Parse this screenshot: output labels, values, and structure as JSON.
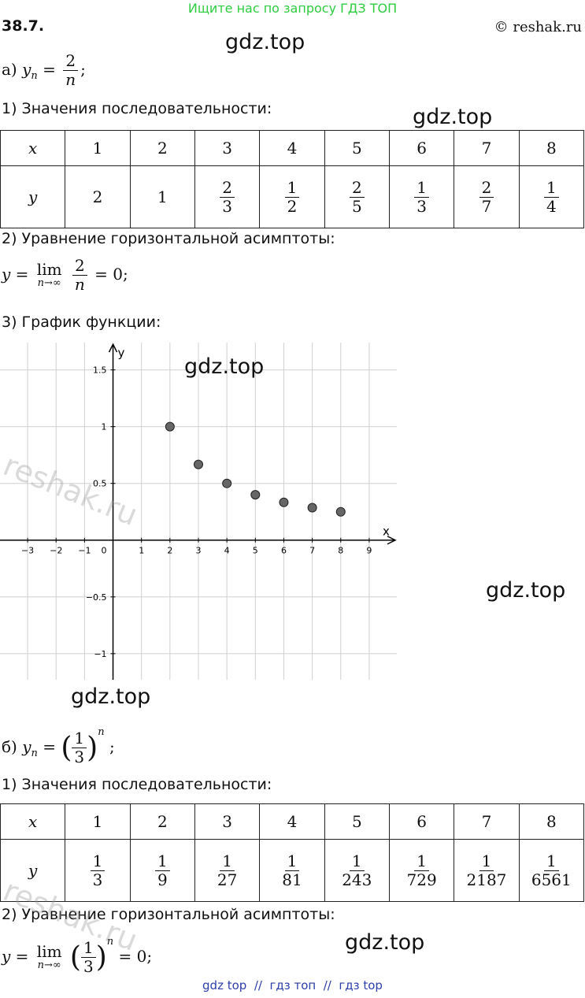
{
  "header": {
    "banner": "Ищите нас по запросу ГДЗ ТОП",
    "problem": "38.7.",
    "copyright": "© reshak.ru"
  },
  "watermarks": [
    "gdz.top",
    "gdz.top",
    "gdz.top",
    "gdz.top",
    "gdz.top",
    "gdz.top"
  ],
  "side_watermarks": [
    "reshak.ru",
    "reshak.ru"
  ],
  "part_a": {
    "label": "а)",
    "formula": {
      "var": "y",
      "index": "n",
      "eq": "=",
      "num": "2",
      "den": "n",
      "tail": ";"
    },
    "step1": "1) Значения последовательности:",
    "table": {
      "header": [
        "x",
        "1",
        "2",
        "3",
        "4",
        "5",
        "6",
        "7",
        "8"
      ],
      "row_label": "y",
      "values": [
        {
          "num": "2"
        },
        {
          "num": "1"
        },
        {
          "num": "2",
          "den": "3"
        },
        {
          "num": "1",
          "den": "2"
        },
        {
          "num": "2",
          "den": "5"
        },
        {
          "num": "1",
          "den": "3"
        },
        {
          "num": "2",
          "den": "7"
        },
        {
          "num": "1",
          "den": "4"
        }
      ]
    },
    "step2": "2) Уравнение горизонтальной асимптоты:",
    "asymptote": {
      "var": "y",
      "eq": "=",
      "lim": "lim",
      "under": "n→∞",
      "num": "2",
      "den": "n",
      "result": "= 0;"
    },
    "step3": "3) График функции:",
    "graph": {
      "type": "scatter",
      "x_label": "x",
      "y_label": "y",
      "origin": "0",
      "xlim": [
        -3.97,
        9.97
      ],
      "ylim": [
        -1.23,
        1.74
      ],
      "xticks": [
        {
          "value": -3,
          "label": "−3"
        },
        {
          "value": -2,
          "label": "−2"
        },
        {
          "value": -1,
          "label": "−1"
        },
        1,
        2,
        3,
        4,
        5,
        6,
        7,
        8,
        9
      ],
      "yticks": [
        {
          "value": -1,
          "label": "−1"
        },
        {
          "value": -0.5,
          "label": "−0.5"
        },
        0.5,
        1,
        1.5
      ],
      "grid": true,
      "color": "#666666",
      "x": [
        2,
        3,
        4,
        5,
        6,
        7,
        8
      ],
      "values": [
        1,
        0.667,
        0.5,
        0.4,
        0.333,
        0.286,
        0.25
      ]
    }
  },
  "part_b": {
    "label": "б)",
    "formula": {
      "var": "y",
      "index": "n",
      "eq": "=",
      "open": "(",
      "num": "1",
      "den": "3",
      "close": ")",
      "power": "n",
      "tail": ";"
    },
    "step1": "1) Значения последовательности:",
    "table": {
      "header": [
        "x",
        "1",
        "2",
        "3",
        "4",
        "5",
        "6",
        "7",
        "8"
      ],
      "row_label": "y",
      "values": [
        {
          "num": "1",
          "den": "3"
        },
        {
          "num": "1",
          "den": "9"
        },
        {
          "num": "1",
          "den": "27"
        },
        {
          "num": "1",
          "den": "81"
        },
        {
          "num": "1",
          "den": "243"
        },
        {
          "num": "1",
          "den": "729"
        },
        {
          "num": "1",
          "den": "2187"
        },
        {
          "num": "1",
          "den": "6561"
        }
      ]
    },
    "step2": "2) Уравнение горизонтальной асимптоты:",
    "asymptote": {
      "var": "y",
      "eq": "=",
      "lim": "lim",
      "under": "n→∞",
      "open": "(",
      "num": "1",
      "den": "3",
      "close": ")",
      "power": "n",
      "result": "= 0;"
    }
  },
  "footer": "gdz top  //  гдз топ  //  гдз top"
}
